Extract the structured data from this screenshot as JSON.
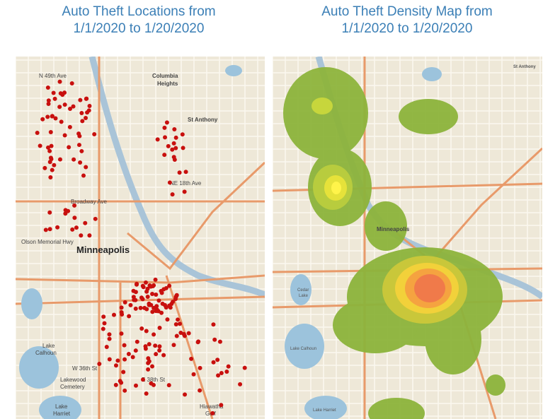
{
  "left_panel": {
    "title": [
      "Auto Theft Locations from",
      "1/1/2020 to 1/20/2020"
    ],
    "map_labels": [
      "N 49th Ave",
      "Columbia",
      "Heights",
      "St Anthony",
      "NE 18th Ave",
      "Broadway Ave",
      "Minneapolis",
      "Olson Memorial Hwy",
      "Lake",
      "Calhoun",
      "W 36th St",
      "Lakewood",
      "Cemetery",
      "E 38th St",
      "Lake",
      "Harriet",
      "Hiawatha",
      "Golf"
    ]
  },
  "right_panel": {
    "title": [
      "Auto Theft Density Map from",
      "1/1/2020 to 1/20/2020"
    ],
    "map_labels": [
      "St Anthony",
      "Minneapolis",
      "Cedar",
      "Lake",
      "Lake Calhoun",
      "Lake Harriet"
    ]
  }
}
